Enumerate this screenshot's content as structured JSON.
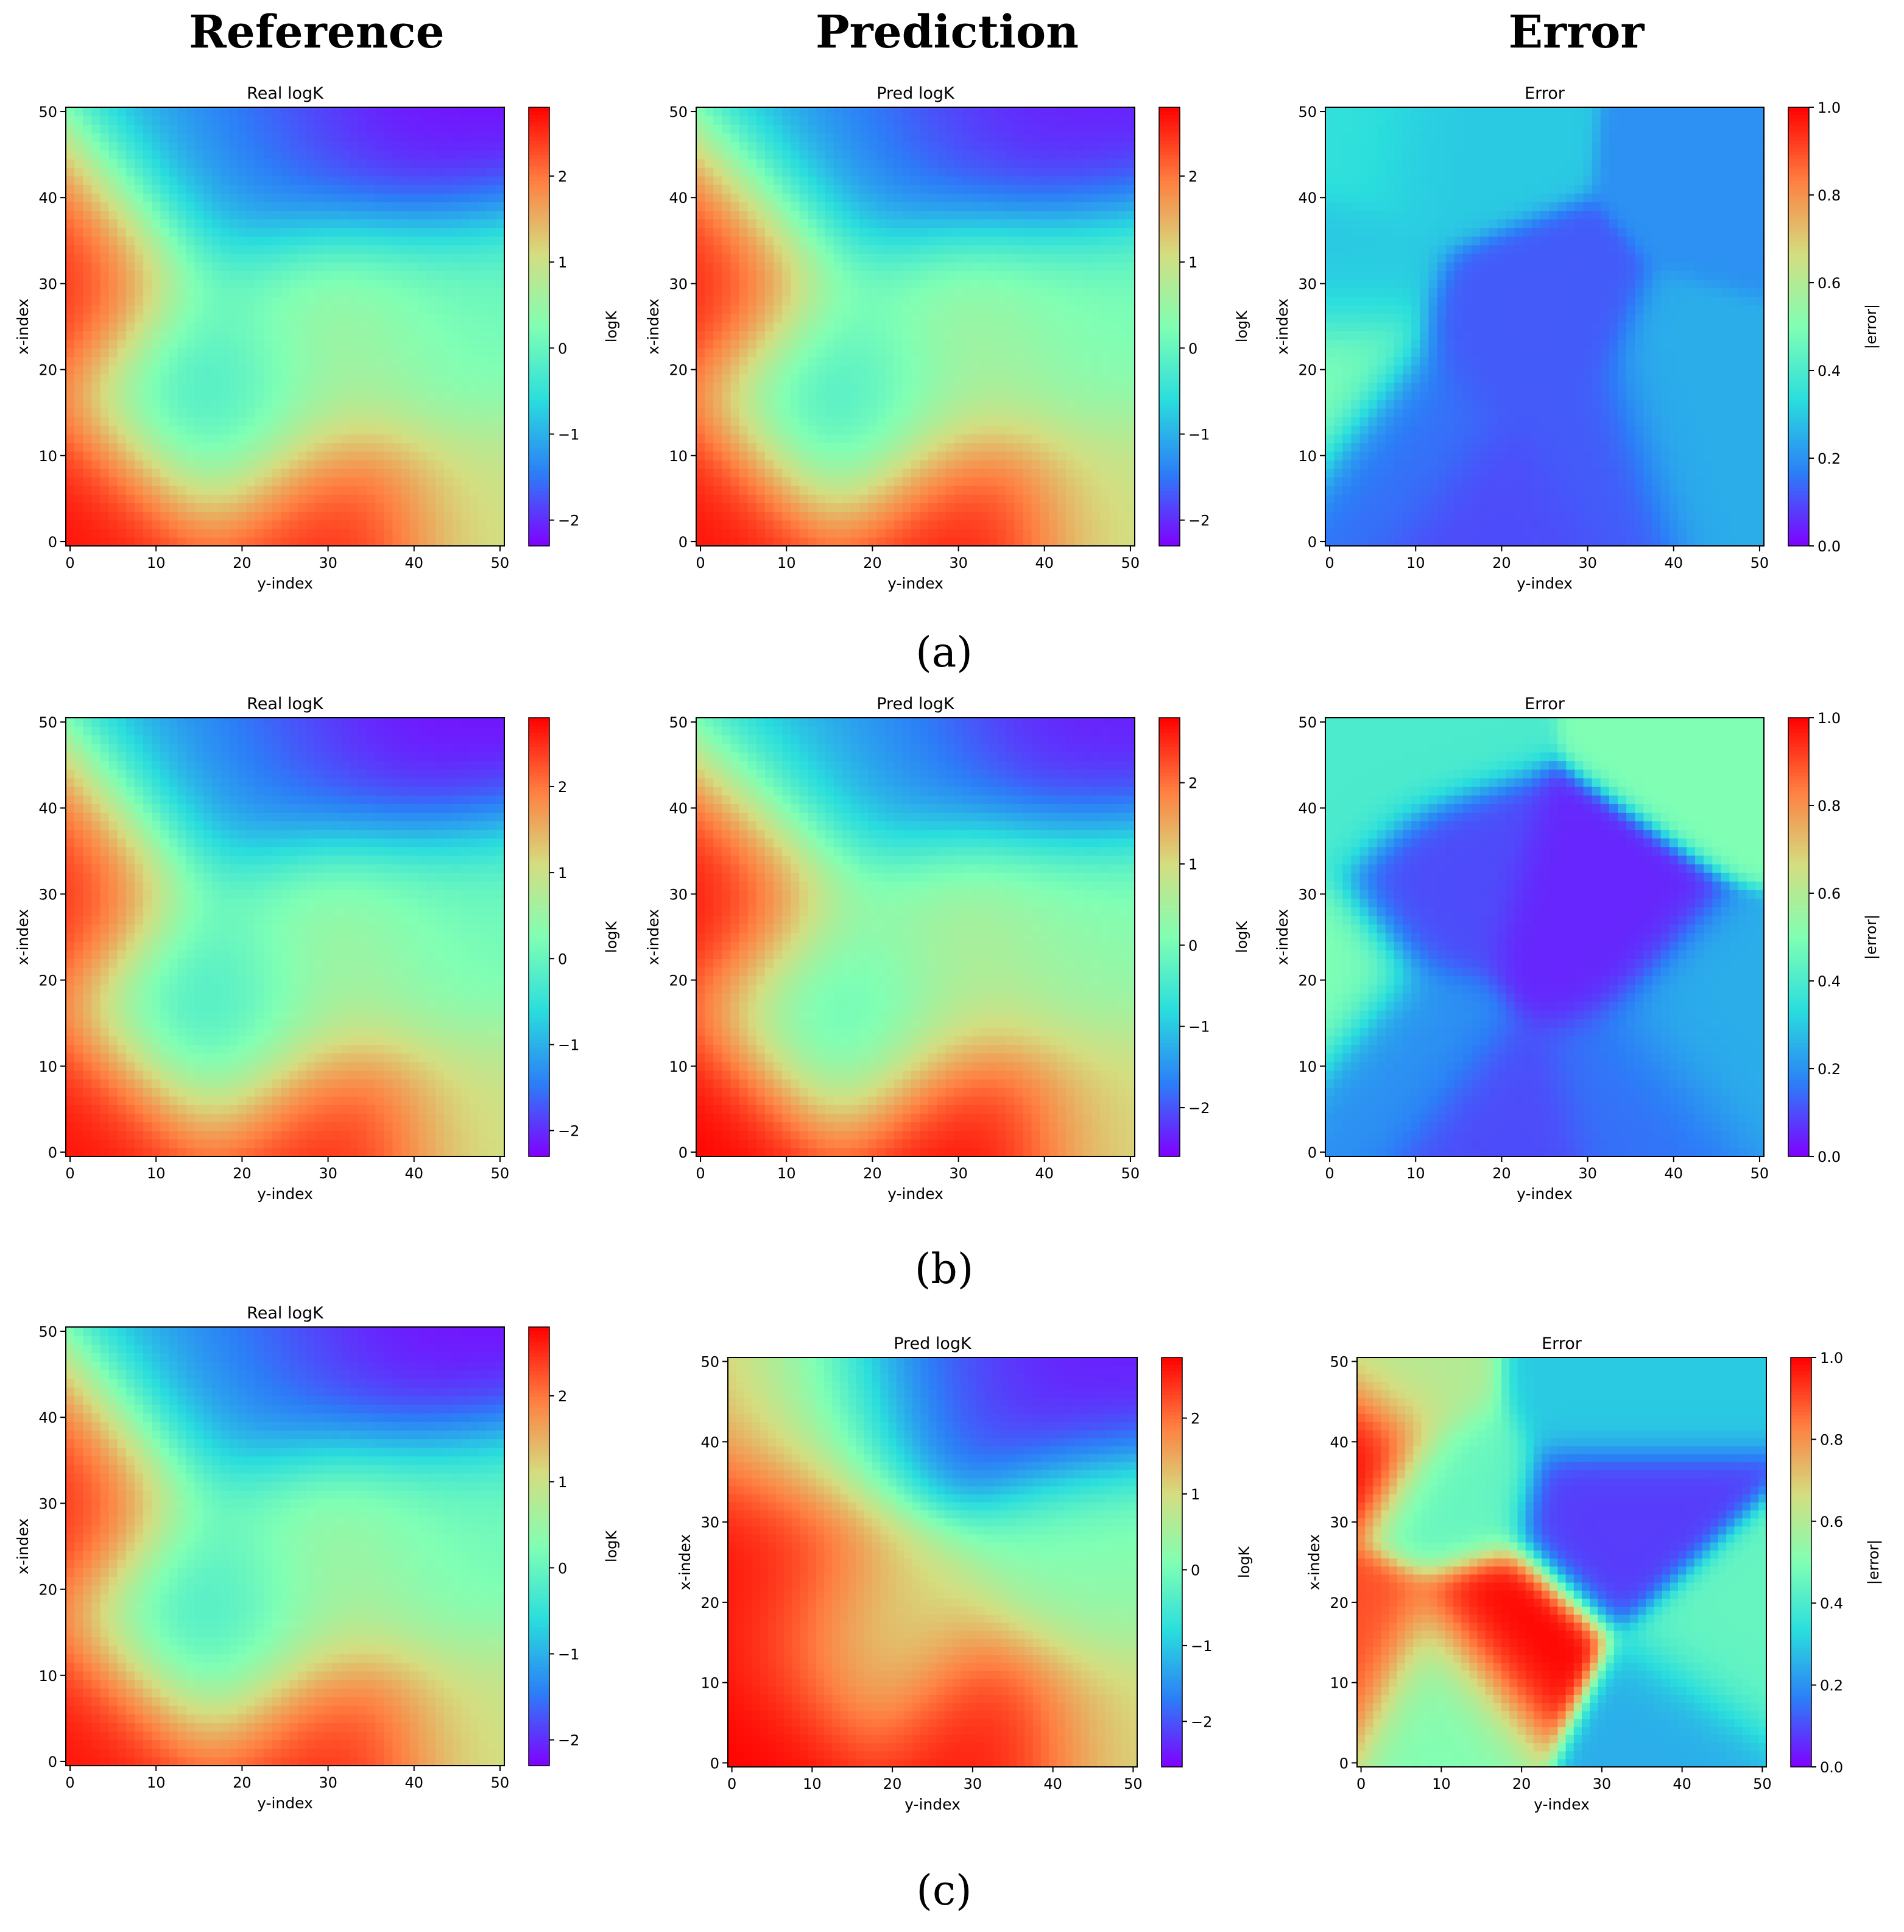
{
  "headers": {
    "reference": "Reference",
    "prediction": "Prediction",
    "error": "Error"
  },
  "rows": [
    {
      "label": "(a)"
    },
    {
      "label": "(b)"
    },
    {
      "label": "(c)"
    }
  ],
  "colormap": {
    "name": "rainbow",
    "stops": [
      "#8000ff",
      "#2c7ef7",
      "#2adddd",
      "#80ffb4",
      "#d4dd80",
      "#ff7f41",
      "#ff0000"
    ]
  },
  "chart_data": [
    {
      "type": "heatmap",
      "row": "(a)",
      "column": "Reference",
      "title": "Real logK",
      "xlabel": "y-index",
      "ylabel": "x-index",
      "colorbar_label": "logK",
      "xlim": [
        0,
        50
      ],
      "ylim": [
        0,
        50
      ],
      "xticks": [
        0,
        10,
        20,
        30,
        40,
        50
      ],
      "yticks": [
        0,
        10,
        20,
        30,
        40,
        50
      ],
      "vmin": -2.3,
      "vmax": 2.8,
      "cticks": [
        -2,
        -1,
        0,
        1,
        2
      ],
      "grid": false,
      "features": [
        {
          "x": 2,
          "y": 1,
          "value": 2.7
        },
        {
          "x": 0,
          "y": 32,
          "value": 2.6
        },
        {
          "x": 30,
          "y": 1,
          "value": 2.6
        },
        {
          "x": 17,
          "y": 17,
          "value": -0.6
        },
        {
          "x": 40,
          "y": 48,
          "value": -2.2
        },
        {
          "x": 25,
          "y": 48,
          "value": -1.9
        },
        {
          "x": 15,
          "y": 45,
          "value": -1.0
        },
        {
          "x": 50,
          "y": 2,
          "value": 1.0
        },
        {
          "x": 45,
          "y": 25,
          "value": 0.1
        },
        {
          "x": 30,
          "y": 25,
          "value": 0.8
        }
      ]
    },
    {
      "type": "heatmap",
      "row": "(a)",
      "column": "Prediction",
      "title": "Pred logK",
      "xlabel": "y-index",
      "ylabel": "x-index",
      "colorbar_label": "logK",
      "xlim": [
        0,
        50
      ],
      "ylim": [
        0,
        50
      ],
      "xticks": [
        0,
        10,
        20,
        30,
        40,
        50
      ],
      "yticks": [
        0,
        10,
        20,
        30,
        40,
        50
      ],
      "vmin": -2.3,
      "vmax": 2.8,
      "cticks": [
        -2,
        -1,
        0,
        1,
        2
      ],
      "grid": false,
      "features": [
        {
          "x": 1,
          "y": 1,
          "value": 2.7
        },
        {
          "x": 2,
          "y": 32,
          "value": 2.7
        },
        {
          "x": 30,
          "y": 1,
          "value": 2.7
        },
        {
          "x": 17,
          "y": 17,
          "value": -0.6
        },
        {
          "x": 40,
          "y": 48,
          "value": -2.1
        },
        {
          "x": 25,
          "y": 48,
          "value": -1.9
        },
        {
          "x": 15,
          "y": 45,
          "value": -1.0
        },
        {
          "x": 50,
          "y": 2,
          "value": 1.0
        },
        {
          "x": 45,
          "y": 25,
          "value": 0.2
        },
        {
          "x": 30,
          "y": 25,
          "value": 0.8
        }
      ]
    },
    {
      "type": "heatmap",
      "row": "(a)",
      "column": "Error",
      "title": "Error",
      "xlabel": "y-index",
      "ylabel": "x-index",
      "colorbar_label": "|error|",
      "xlim": [
        0,
        50
      ],
      "ylim": [
        0,
        50
      ],
      "xticks": [
        0,
        10,
        20,
        30,
        40,
        50
      ],
      "yticks": [
        0,
        10,
        20,
        30,
        40,
        50
      ],
      "vmin": 0,
      "vmax": 1,
      "cticks": [
        0,
        0.2,
        0.4,
        0.6,
        0.8,
        1.0
      ],
      "grid": false,
      "features": [
        {
          "x": 0,
          "y": 20,
          "value": 0.5
        },
        {
          "x": 4,
          "y": 49,
          "value": 0.35
        },
        {
          "x": 12,
          "y": 48,
          "value": 0.3
        },
        {
          "x": 0,
          "y": 30,
          "value": 0.3
        },
        {
          "x": 42,
          "y": 14,
          "value": 0.25
        },
        {
          "x": 10,
          "y": 12,
          "value": 0.15
        },
        {
          "x": 22,
          "y": 22,
          "value": 0.12
        },
        {
          "x": 30,
          "y": 10,
          "value": 0.12
        },
        {
          "x": 20,
          "y": 4,
          "value": 0.1
        },
        {
          "x": 50,
          "y": 45,
          "value": 0.2
        }
      ]
    },
    {
      "type": "heatmap",
      "row": "(b)",
      "column": "Reference",
      "title": "Real logK",
      "xlabel": "y-index",
      "ylabel": "x-index",
      "colorbar_label": "logK",
      "xlim": [
        0,
        50
      ],
      "ylim": [
        0,
        50
      ],
      "xticks": [
        0,
        10,
        20,
        30,
        40,
        50
      ],
      "yticks": [
        0,
        10,
        20,
        30,
        40,
        50
      ],
      "vmin": -2.3,
      "vmax": 2.8,
      "cticks": [
        -2,
        -1,
        0,
        1,
        2
      ],
      "grid": false,
      "features": [
        {
          "x": 2,
          "y": 1,
          "value": 2.7
        },
        {
          "x": 0,
          "y": 32,
          "value": 2.6
        },
        {
          "x": 30,
          "y": 1,
          "value": 2.6
        },
        {
          "x": 17,
          "y": 17,
          "value": -0.6
        },
        {
          "x": 40,
          "y": 48,
          "value": -2.2
        },
        {
          "x": 25,
          "y": 48,
          "value": -1.9
        },
        {
          "x": 15,
          "y": 45,
          "value": -1.0
        },
        {
          "x": 50,
          "y": 2,
          "value": 1.0
        },
        {
          "x": 45,
          "y": 25,
          "value": 0.1
        },
        {
          "x": 30,
          "y": 25,
          "value": 0.8
        }
      ]
    },
    {
      "type": "heatmap",
      "row": "(b)",
      "column": "Prediction",
      "title": "Pred logK",
      "xlabel": "y-index",
      "ylabel": "x-index",
      "colorbar_label": "logK",
      "xlim": [
        0,
        50
      ],
      "ylim": [
        0,
        50
      ],
      "xticks": [
        0,
        10,
        20,
        30,
        40,
        50
      ],
      "yticks": [
        0,
        10,
        20,
        30,
        40,
        50
      ],
      "vmin": -2.6,
      "vmax": 2.8,
      "cticks": [
        -2,
        -1,
        0,
        1,
        2
      ],
      "grid": false,
      "features": [
        {
          "x": 1,
          "y": 1,
          "value": 2.8
        },
        {
          "x": 3,
          "y": 31,
          "value": 2.8
        },
        {
          "x": 31,
          "y": 1,
          "value": 2.8
        },
        {
          "x": 17,
          "y": 17,
          "value": -0.5
        },
        {
          "x": 42,
          "y": 48,
          "value": -2.4
        },
        {
          "x": 25,
          "y": 48,
          "value": -1.9
        },
        {
          "x": 15,
          "y": 45,
          "value": -1.0
        },
        {
          "x": 50,
          "y": 2,
          "value": 1.0
        },
        {
          "x": 45,
          "y": 25,
          "value": 0.2
        },
        {
          "x": 30,
          "y": 25,
          "value": 0.8
        }
      ]
    },
    {
      "type": "heatmap",
      "row": "(b)",
      "column": "Error",
      "title": "Error",
      "xlabel": "y-index",
      "ylabel": "x-index",
      "colorbar_label": "|error|",
      "xlim": [
        0,
        50
      ],
      "ylim": [
        0,
        50
      ],
      "xticks": [
        0,
        10,
        20,
        30,
        40,
        50
      ],
      "yticks": [
        0,
        10,
        20,
        30,
        40,
        50
      ],
      "vmin": 0,
      "vmax": 1,
      "cticks": [
        0,
        0.2,
        0.4,
        0.6,
        0.8,
        1.0
      ],
      "grid": false,
      "features": [
        {
          "x": 0,
          "y": 21,
          "value": 0.5
        },
        {
          "x": 0,
          "y": 42,
          "value": 0.4
        },
        {
          "x": 6,
          "y": 49,
          "value": 0.4
        },
        {
          "x": 47,
          "y": 49,
          "value": 0.5
        },
        {
          "x": 42,
          "y": 14,
          "value": 0.25
        },
        {
          "x": 10,
          "y": 12,
          "value": 0.2
        },
        {
          "x": 35,
          "y": 8,
          "value": 0.15
        },
        {
          "x": 20,
          "y": 4,
          "value": 0.1
        },
        {
          "x": 12,
          "y": 30,
          "value": 0.1
        },
        {
          "x": 30,
          "y": 25,
          "value": 0.05
        }
      ]
    },
    {
      "type": "heatmap",
      "row": "(c)",
      "column": "Reference",
      "title": "Real logK",
      "xlabel": "y-index",
      "ylabel": "x-index",
      "colorbar_label": "logK",
      "xlim": [
        0,
        50
      ],
      "ylim": [
        0,
        50
      ],
      "xticks": [
        0,
        10,
        20,
        30,
        40,
        50
      ],
      "yticks": [
        0,
        10,
        20,
        30,
        40,
        50
      ],
      "vmin": -2.3,
      "vmax": 2.8,
      "cticks": [
        -2,
        -1,
        0,
        1,
        2
      ],
      "grid": false,
      "features": [
        {
          "x": 2,
          "y": 1,
          "value": 2.7
        },
        {
          "x": 0,
          "y": 32,
          "value": 2.6
        },
        {
          "x": 30,
          "y": 1,
          "value": 2.6
        },
        {
          "x": 17,
          "y": 17,
          "value": -0.6
        },
        {
          "x": 40,
          "y": 48,
          "value": -2.2
        },
        {
          "x": 25,
          "y": 48,
          "value": -1.9
        },
        {
          "x": 15,
          "y": 45,
          "value": -1.0
        },
        {
          "x": 50,
          "y": 2,
          "value": 1.0
        },
        {
          "x": 45,
          "y": 25,
          "value": 0.1
        },
        {
          "x": 30,
          "y": 25,
          "value": 0.8
        }
      ]
    },
    {
      "type": "heatmap",
      "row": "(c)",
      "column": "Prediction",
      "title": "Pred logK",
      "xlabel": "y-index",
      "ylabel": "x-index",
      "colorbar_label": "logK",
      "xlim": [
        0,
        50
      ],
      "ylim": [
        0,
        50
      ],
      "xticks": [
        0,
        10,
        20,
        30,
        40,
        50
      ],
      "yticks": [
        0,
        10,
        20,
        30,
        40,
        50
      ],
      "vmin": -2.6,
      "vmax": 2.8,
      "cticks": [
        -2,
        -1,
        0,
        1,
        2
      ],
      "grid": false,
      "features": [
        {
          "x": 3,
          "y": 30,
          "value": 2.8
        },
        {
          "x": 3,
          "y": 20,
          "value": 2.7
        },
        {
          "x": 3,
          "y": 2,
          "value": 2.8
        },
        {
          "x": 32,
          "y": 2,
          "value": 2.7
        },
        {
          "x": 4,
          "y": 45,
          "value": 1.8
        },
        {
          "x": 17,
          "y": 17,
          "value": 0.9
        },
        {
          "x": 42,
          "y": 48,
          "value": -2.4
        },
        {
          "x": 25,
          "y": 48,
          "value": -2.0
        },
        {
          "x": 11,
          "y": 45,
          "value": -0.8
        },
        {
          "x": 45,
          "y": 25,
          "value": 0.2
        },
        {
          "x": 50,
          "y": 2,
          "value": 1.0
        }
      ]
    },
    {
      "type": "heatmap",
      "row": "(c)",
      "column": "Error",
      "title": "Error",
      "xlabel": "y-index",
      "ylabel": "x-index",
      "colorbar_label": "|error|",
      "xlim": [
        0,
        50
      ],
      "ylim": [
        0,
        50
      ],
      "xticks": [
        0,
        10,
        20,
        30,
        40,
        50
      ],
      "yticks": [
        0,
        10,
        20,
        30,
        40,
        50
      ],
      "vmin": 0,
      "vmax": 1,
      "cticks": [
        0,
        0.2,
        0.4,
        0.6,
        0.8,
        1.0
      ],
      "grid": false,
      "features": [
        {
          "x": 17,
          "y": 16,
          "value": 1.0
        },
        {
          "x": 0,
          "y": 40,
          "value": 1.0
        },
        {
          "x": 0,
          "y": 15,
          "value": 0.9
        },
        {
          "x": 11,
          "y": 34,
          "value": 0.45
        },
        {
          "x": 46,
          "y": 13,
          "value": 0.45
        },
        {
          "x": 5,
          "y": 47,
          "value": 0.6
        },
        {
          "x": 30,
          "y": 47,
          "value": 0.3
        },
        {
          "x": 40,
          "y": 4,
          "value": 0.25
        },
        {
          "x": 10,
          "y": 10,
          "value": 0.5
        },
        {
          "x": 30,
          "y": 30,
          "value": 0.08
        }
      ]
    }
  ]
}
